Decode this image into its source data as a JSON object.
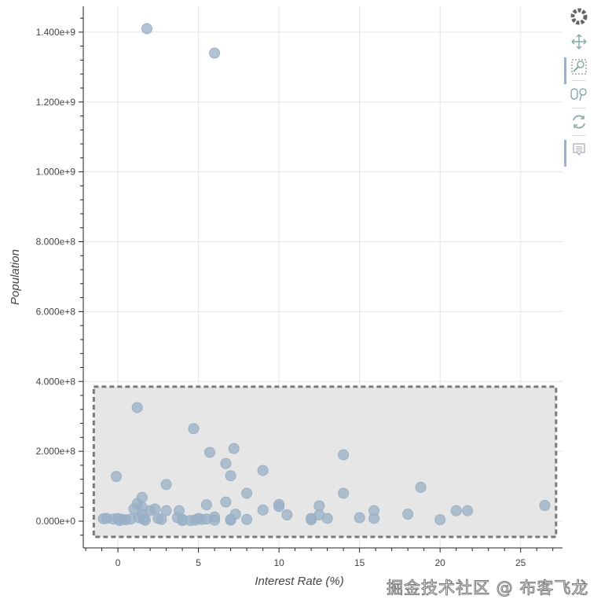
{
  "chart_data": {
    "type": "scatter",
    "title": "",
    "xlabel": "Interest Rate (%)",
    "ylabel": "Population",
    "xlim": [
      -2.15,
      27.6
    ],
    "ylim": [
      -76500000,
      1474000000
    ],
    "grid": true,
    "x_ticks": [
      0,
      5,
      10,
      15,
      20,
      25
    ],
    "y_ticks": [
      0,
      200000000,
      400000000,
      600000000,
      800000000,
      1000000000,
      1200000000,
      1400000000
    ],
    "y_tick_labels": [
      "0.000e+0",
      "2.000e+8",
      "4.000e+8",
      "6.000e+8",
      "8.000e+8",
      "1.000e+9",
      "1.200e+9",
      "1.400e+9"
    ],
    "marker_color": "#98b0c6",
    "selection_box": {
      "x": [
        -1.5,
        27.2
      ],
      "y": [
        -45000000,
        385000000
      ]
    },
    "points": [
      [
        1.8,
        1410000000
      ],
      [
        6.0,
        1340000000
      ],
      [
        1.2,
        325000000
      ],
      [
        4.7,
        265000000
      ],
      [
        5.7,
        197000000
      ],
      [
        7.2,
        208000000
      ],
      [
        6.7,
        165000000
      ],
      [
        7.0,
        130000000
      ],
      [
        -0.1,
        128000000
      ],
      [
        3.0,
        105000000
      ],
      [
        9.0,
        145000000
      ],
      [
        8.0,
        80000000
      ],
      [
        1.5,
        68000000
      ],
      [
        14.0,
        190000000
      ],
      [
        14.0,
        80000000
      ],
      [
        18.8,
        97000000
      ],
      [
        10.0,
        48000000
      ],
      [
        10.0,
        42000000
      ],
      [
        12.5,
        44000000
      ],
      [
        15.9,
        30000000
      ],
      [
        15.9,
        8000000
      ],
      [
        15.0,
        10000000
      ],
      [
        18.0,
        20000000
      ],
      [
        20.0,
        4000000
      ],
      [
        21.0,
        30000000
      ],
      [
        21.7,
        30000000
      ],
      [
        26.5,
        45000000
      ],
      [
        6.7,
        55000000
      ],
      [
        5.5,
        47000000
      ],
      [
        9.0,
        32000000
      ],
      [
        10.5,
        18000000
      ],
      [
        12.0,
        8000000
      ],
      [
        12.0,
        4000000
      ],
      [
        12.5,
        18000000
      ],
      [
        13.0,
        8000000
      ],
      [
        7.3,
        20000000
      ],
      [
        8.0,
        5000000
      ],
      [
        7.0,
        5000000
      ],
      [
        7.0,
        3000000
      ],
      [
        6.0,
        12000000
      ],
      [
        5.0,
        8000000
      ],
      [
        5.2,
        5000000
      ],
      [
        4.8,
        3000000
      ],
      [
        4.5,
        2000000
      ],
      [
        4.0,
        5000000
      ],
      [
        3.8,
        30000000
      ],
      [
        3.7,
        10000000
      ],
      [
        3.0,
        30000000
      ],
      [
        2.5,
        8000000
      ],
      [
        2.7,
        5000000
      ],
      [
        2.3,
        35000000
      ],
      [
        2.0,
        30000000
      ],
      [
        1.5,
        40000000
      ],
      [
        1.2,
        50000000
      ],
      [
        1.0,
        35000000
      ],
      [
        1.5,
        20000000
      ],
      [
        1.3,
        10000000
      ],
      [
        1.6,
        5000000
      ],
      [
        1.7,
        3000000
      ],
      [
        0.3,
        5000000
      ],
      [
        0.5,
        4000000
      ],
      [
        0.0,
        8000000
      ],
      [
        -0.3,
        6000000
      ],
      [
        -0.7,
        8000000
      ],
      [
        -0.9,
        7000000
      ],
      [
        0.1,
        2000000
      ],
      [
        0.8,
        6000000
      ],
      [
        5.5,
        6000000
      ],
      [
        6.0,
        3000000
      ],
      [
        4.0,
        2000000
      ]
    ]
  },
  "toolbar": {
    "tools": [
      "bokeh-logo-icon",
      "pan-icon",
      "box-zoom-icon",
      "wheel-zoom-icon",
      "reset-icon",
      "hover-icon"
    ]
  },
  "watermark": "掘金技术社区 @ 布客飞龙"
}
